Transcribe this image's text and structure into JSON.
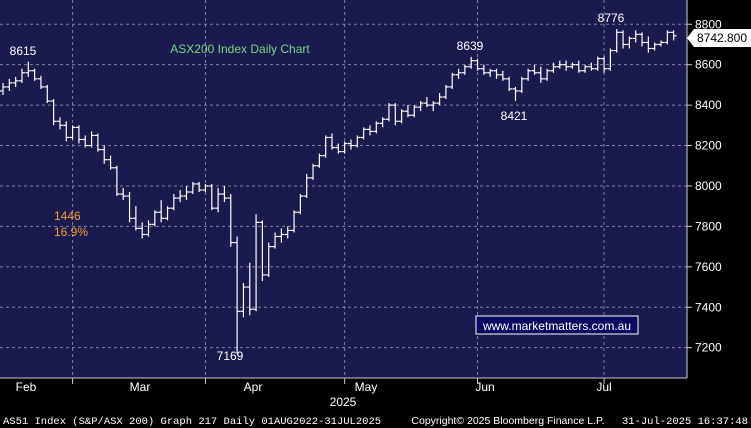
{
  "chart_data": {
    "type": "ohlc",
    "title": "ASX200 Index Daily Chart",
    "y_axis": {
      "ticks": [
        7200,
        7400,
        7600,
        7800,
        8000,
        8200,
        8400,
        8600,
        8800
      ],
      "range": [
        7050,
        8920
      ],
      "position": "right"
    },
    "x_axis": {
      "month_labels": [
        "Feb",
        "Mar",
        "Apr",
        "May",
        "Jun",
        "Jul"
      ],
      "year_label": "2025"
    },
    "last_price": "8742.800",
    "annotations": {
      "high_feb": "8615",
      "low_apr": "7169",
      "high_may": "8639",
      "low_jun": "8421",
      "high_jul": "8776",
      "drop_points": "1446",
      "drop_pct": "16.9%"
    },
    "watermark": "www.marketmatters.com.au",
    "grid": true,
    "footer": {
      "left": "AS51 Index (S&P/ASX 200) Graph 217  Daily 01AUG2022-31JUL2025",
      "center": "Copyright© 2025 Bloomberg Finance L.P.",
      "right": "31-Jul-2025 16:37:48"
    },
    "colors": {
      "background": "#1a1a4e",
      "grid": "#7a7a9a",
      "bars": "#ffffff",
      "title": "#7dd67d",
      "annotation_orange": "#f0a030",
      "last_price_box": "#ffffff"
    },
    "series": [
      {
        "o": 8470,
        "h": 8510,
        "l": 8450,
        "c": 8490
      },
      {
        "o": 8490,
        "h": 8530,
        "l": 8470,
        "c": 8510
      },
      {
        "o": 8510,
        "h": 8540,
        "l": 8490,
        "c": 8520
      },
      {
        "o": 8520,
        "h": 8580,
        "l": 8510,
        "c": 8560
      },
      {
        "o": 8560,
        "h": 8615,
        "l": 8540,
        "c": 8570
      },
      {
        "o": 8570,
        "h": 8580,
        "l": 8520,
        "c": 8530
      },
      {
        "o": 8530,
        "h": 8545,
        "l": 8480,
        "c": 8490
      },
      {
        "o": 8490,
        "h": 8500,
        "l": 8410,
        "c": 8420
      },
      {
        "o": 8420,
        "h": 8430,
        "l": 8300,
        "c": 8320
      },
      {
        "o": 8320,
        "h": 8340,
        "l": 8280,
        "c": 8300
      },
      {
        "o": 8300,
        "h": 8320,
        "l": 8220,
        "c": 8240
      },
      {
        "o": 8240,
        "h": 8300,
        "l": 8230,
        "c": 8290
      },
      {
        "o": 8290,
        "h": 8300,
        "l": 8210,
        "c": 8230
      },
      {
        "o": 8230,
        "h": 8250,
        "l": 8190,
        "c": 8200
      },
      {
        "o": 8200,
        "h": 8270,
        "l": 8190,
        "c": 8250
      },
      {
        "o": 8250,
        "h": 8260,
        "l": 8170,
        "c": 8180
      },
      {
        "o": 8180,
        "h": 8200,
        "l": 8110,
        "c": 8130
      },
      {
        "o": 8130,
        "h": 8150,
        "l": 8080,
        "c": 8090
      },
      {
        "o": 8090,
        "h": 8100,
        "l": 7950,
        "c": 7960
      },
      {
        "o": 7960,
        "h": 7990,
        "l": 7930,
        "c": 7950
      },
      {
        "o": 7950,
        "h": 7970,
        "l": 7820,
        "c": 7840
      },
      {
        "o": 7840,
        "h": 7900,
        "l": 7780,
        "c": 7790
      },
      {
        "o": 7790,
        "h": 7820,
        "l": 7740,
        "c": 7760
      },
      {
        "o": 7760,
        "h": 7830,
        "l": 7750,
        "c": 7810
      },
      {
        "o": 7810,
        "h": 7880,
        "l": 7800,
        "c": 7870
      },
      {
        "o": 7870,
        "h": 7930,
        "l": 7820,
        "c": 7840
      },
      {
        "o": 7840,
        "h": 7900,
        "l": 7830,
        "c": 7890
      },
      {
        "o": 7890,
        "h": 7960,
        "l": 7880,
        "c": 7940
      },
      {
        "o": 7940,
        "h": 7980,
        "l": 7920,
        "c": 7950
      },
      {
        "o": 7950,
        "h": 8000,
        "l": 7930,
        "c": 7970
      },
      {
        "o": 7970,
        "h": 8020,
        "l": 7960,
        "c": 8010
      },
      {
        "o": 8010,
        "h": 8020,
        "l": 7970,
        "c": 7980
      },
      {
        "o": 7980,
        "h": 8010,
        "l": 7970,
        "c": 8000
      },
      {
        "o": 8000,
        "h": 8010,
        "l": 7880,
        "c": 7890
      },
      {
        "o": 7890,
        "h": 7990,
        "l": 7870,
        "c": 7960
      },
      {
        "o": 7960,
        "h": 8000,
        "l": 7920,
        "c": 7940
      },
      {
        "o": 7940,
        "h": 7960,
        "l": 7700,
        "c": 7720
      },
      {
        "o": 7720,
        "h": 7750,
        "l": 7169,
        "c": 7380
      },
      {
        "o": 7380,
        "h": 7520,
        "l": 7350,
        "c": 7500
      },
      {
        "o": 7500,
        "h": 7620,
        "l": 7360,
        "c": 7390
      },
      {
        "o": 7390,
        "h": 7860,
        "l": 7380,
        "c": 7820
      },
      {
        "o": 7820,
        "h": 7830,
        "l": 7530,
        "c": 7560
      },
      {
        "o": 7560,
        "h": 7720,
        "l": 7550,
        "c": 7700
      },
      {
        "o": 7700,
        "h": 7770,
        "l": 7690,
        "c": 7750
      },
      {
        "o": 7750,
        "h": 7790,
        "l": 7720,
        "c": 7760
      },
      {
        "o": 7760,
        "h": 7800,
        "l": 7740,
        "c": 7780
      },
      {
        "o": 7780,
        "h": 7880,
        "l": 7770,
        "c": 7870
      },
      {
        "o": 7870,
        "h": 7960,
        "l": 7860,
        "c": 7950
      },
      {
        "o": 7950,
        "h": 8060,
        "l": 7940,
        "c": 8040
      },
      {
        "o": 8040,
        "h": 8110,
        "l": 8030,
        "c": 8100
      },
      {
        "o": 8100,
        "h": 8160,
        "l": 8090,
        "c": 8150
      },
      {
        "o": 8150,
        "h": 8250,
        "l": 8140,
        "c": 8240
      },
      {
        "o": 8240,
        "h": 8260,
        "l": 8180,
        "c": 8190
      },
      {
        "o": 8190,
        "h": 8210,
        "l": 8160,
        "c": 8170
      },
      {
        "o": 8170,
        "h": 8220,
        "l": 8160,
        "c": 8210
      },
      {
        "o": 8210,
        "h": 8230,
        "l": 8180,
        "c": 8200
      },
      {
        "o": 8200,
        "h": 8250,
        "l": 8190,
        "c": 8240
      },
      {
        "o": 8240,
        "h": 8290,
        "l": 8230,
        "c": 8280
      },
      {
        "o": 8280,
        "h": 8300,
        "l": 8250,
        "c": 8270
      },
      {
        "o": 8270,
        "h": 8320,
        "l": 8260,
        "c": 8310
      },
      {
        "o": 8310,
        "h": 8340,
        "l": 8290,
        "c": 8330
      },
      {
        "o": 8330,
        "h": 8410,
        "l": 8320,
        "c": 8400
      },
      {
        "o": 8400,
        "h": 8410,
        "l": 8300,
        "c": 8320
      },
      {
        "o": 8320,
        "h": 8380,
        "l": 8310,
        "c": 8370
      },
      {
        "o": 8370,
        "h": 8400,
        "l": 8340,
        "c": 8350
      },
      {
        "o": 8350,
        "h": 8400,
        "l": 8340,
        "c": 8390
      },
      {
        "o": 8390,
        "h": 8420,
        "l": 8370,
        "c": 8410
      },
      {
        "o": 8410,
        "h": 8440,
        "l": 8390,
        "c": 8400
      },
      {
        "o": 8400,
        "h": 8420,
        "l": 8370,
        "c": 8410
      },
      {
        "o": 8410,
        "h": 8460,
        "l": 8400,
        "c": 8440
      },
      {
        "o": 8440,
        "h": 8500,
        "l": 8430,
        "c": 8490
      },
      {
        "o": 8490,
        "h": 8560,
        "l": 8480,
        "c": 8550
      },
      {
        "o": 8550,
        "h": 8580,
        "l": 8530,
        "c": 8560
      },
      {
        "o": 8560,
        "h": 8600,
        "l": 8550,
        "c": 8590
      },
      {
        "o": 8590,
        "h": 8639,
        "l": 8580,
        "c": 8620
      },
      {
        "o": 8620,
        "h": 8630,
        "l": 8570,
        "c": 8580
      },
      {
        "o": 8580,
        "h": 8600,
        "l": 8550,
        "c": 8560
      },
      {
        "o": 8560,
        "h": 8580,
        "l": 8540,
        "c": 8570
      },
      {
        "o": 8570,
        "h": 8580,
        "l": 8530,
        "c": 8550
      },
      {
        "o": 8550,
        "h": 8570,
        "l": 8520,
        "c": 8530
      },
      {
        "o": 8530,
        "h": 8540,
        "l": 8470,
        "c": 8480
      },
      {
        "o": 8480,
        "h": 8490,
        "l": 8421,
        "c": 8470
      },
      {
        "o": 8470,
        "h": 8540,
        "l": 8460,
        "c": 8530
      },
      {
        "o": 8530,
        "h": 8580,
        "l": 8520,
        "c": 8570
      },
      {
        "o": 8570,
        "h": 8600,
        "l": 8550,
        "c": 8560
      },
      {
        "o": 8560,
        "h": 8590,
        "l": 8510,
        "c": 8530
      },
      {
        "o": 8530,
        "h": 8580,
        "l": 8520,
        "c": 8570
      },
      {
        "o": 8570,
        "h": 8610,
        "l": 8560,
        "c": 8590
      },
      {
        "o": 8590,
        "h": 8620,
        "l": 8580,
        "c": 8600
      },
      {
        "o": 8600,
        "h": 8620,
        "l": 8570,
        "c": 8590
      },
      {
        "o": 8590,
        "h": 8610,
        "l": 8580,
        "c": 8600
      },
      {
        "o": 8600,
        "h": 8620,
        "l": 8560,
        "c": 8570
      },
      {
        "o": 8570,
        "h": 8600,
        "l": 8560,
        "c": 8590
      },
      {
        "o": 8590,
        "h": 8610,
        "l": 8570,
        "c": 8580
      },
      {
        "o": 8580,
        "h": 8640,
        "l": 8570,
        "c": 8630
      },
      {
        "o": 8630,
        "h": 8640,
        "l": 8560,
        "c": 8580
      },
      {
        "o": 8580,
        "h": 8680,
        "l": 8570,
        "c": 8670
      },
      {
        "o": 8670,
        "h": 8776,
        "l": 8660,
        "c": 8760
      },
      {
        "o": 8760,
        "h": 8770,
        "l": 8680,
        "c": 8700
      },
      {
        "o": 8700,
        "h": 8740,
        "l": 8680,
        "c": 8730
      },
      {
        "o": 8730,
        "h": 8770,
        "l": 8710,
        "c": 8750
      },
      {
        "o": 8750,
        "h": 8760,
        "l": 8690,
        "c": 8710
      },
      {
        "o": 8710,
        "h": 8740,
        "l": 8660,
        "c": 8680
      },
      {
        "o": 8680,
        "h": 8710,
        "l": 8670,
        "c": 8700
      },
      {
        "o": 8700,
        "h": 8720,
        "l": 8690,
        "c": 8710
      },
      {
        "o": 8710,
        "h": 8770,
        "l": 8700,
        "c": 8760
      },
      {
        "o": 8760,
        "h": 8770,
        "l": 8720,
        "c": 8742.8
      }
    ]
  }
}
